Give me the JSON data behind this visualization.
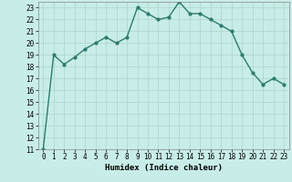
{
  "x": [
    0,
    1,
    2,
    3,
    4,
    5,
    6,
    7,
    8,
    9,
    10,
    11,
    12,
    13,
    14,
    15,
    16,
    17,
    18,
    19,
    20,
    21,
    22,
    23
  ],
  "y": [
    11,
    19,
    18.2,
    18.8,
    19.5,
    20.0,
    20.5,
    20.0,
    20.5,
    23.0,
    22.5,
    22.0,
    22.2,
    23.5,
    22.5,
    22.5,
    22.0,
    21.5,
    21.0,
    19.0,
    17.5,
    16.5,
    17.0,
    16.5
  ],
  "color": "#2d7a6e",
  "bg_color": "#c8ede8",
  "grid_color": "#aad4cc",
  "xlabel": "Humidex (Indice chaleur)",
  "ylim": [
    11,
    23.5
  ],
  "xlim": [
    -0.5,
    23.5
  ],
  "yticks": [
    11,
    12,
    13,
    14,
    15,
    16,
    17,
    18,
    19,
    20,
    21,
    22,
    23
  ],
  "xticks": [
    0,
    1,
    2,
    3,
    4,
    5,
    6,
    7,
    8,
    9,
    10,
    11,
    12,
    13,
    14,
    15,
    16,
    17,
    18,
    19,
    20,
    21,
    22,
    23
  ],
  "marker_size": 2.0,
  "linewidth": 1.0,
  "tick_fontsize": 5.5,
  "xlabel_fontsize": 6.5
}
